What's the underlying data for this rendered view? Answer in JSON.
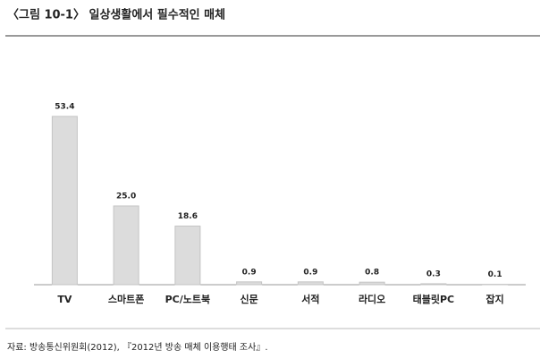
{
  "chart_data": {
    "type": "bar",
    "title": "〈그림 10-1〉 일상생활에서 필수적인 매체",
    "categories": [
      "TV",
      "스마트폰",
      "PC/노트북",
      "신문",
      "서적",
      "라디오",
      "태블릿PC",
      "잡지"
    ],
    "values": [
      53.4,
      25.0,
      18.6,
      0.9,
      0.9,
      0.8,
      0.3,
      0.1
    ],
    "value_labels": [
      "53.4",
      "25.0",
      "18.6",
      "0.9",
      "0.9",
      "0.8",
      "0.3",
      "0.1"
    ],
    "color": "#dcdcdc",
    "source": "자료: 방송통신위원회(2012), 『2012년 방송 매체 이용행태 조사』."
  }
}
